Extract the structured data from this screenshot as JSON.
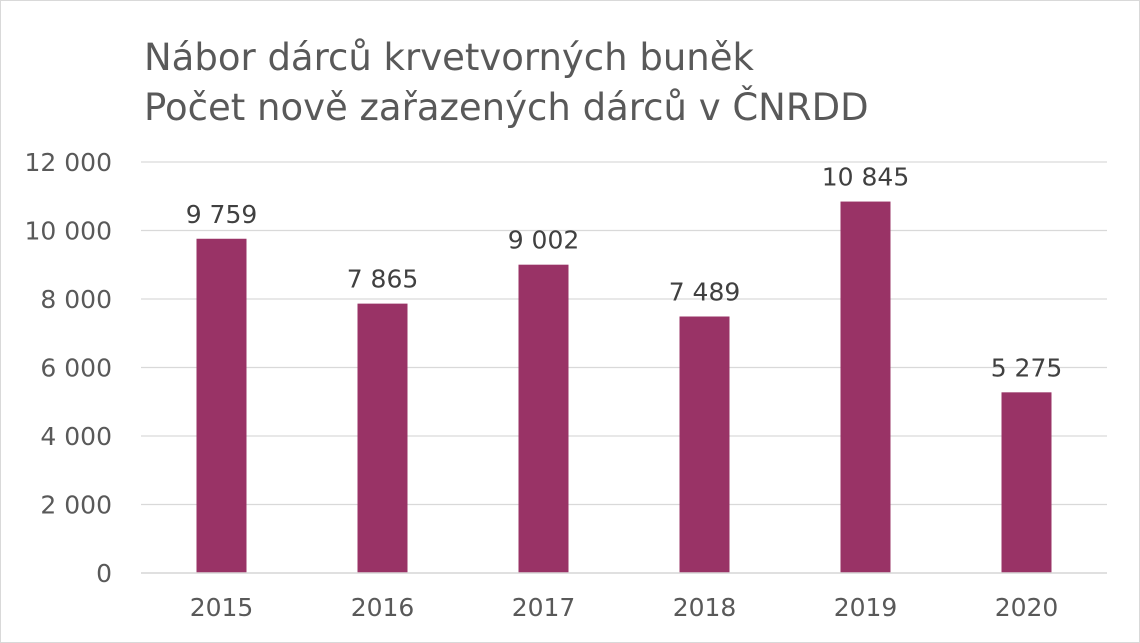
{
  "chart_data": {
    "type": "bar",
    "title": "Nábor dárců krvetvorných buněk",
    "subtitle": "Počet nově zařazených dárců v ČNRDD",
    "xlabel": "",
    "ylabel": "",
    "categories": [
      "2015",
      "2016",
      "2017",
      "2018",
      "2019",
      "2020"
    ],
    "values": [
      9759,
      7865,
      9002,
      7489,
      10845,
      5275
    ],
    "data_labels": [
      "9 759",
      "7 865",
      "9 002",
      "7 489",
      "10 845",
      "5 275"
    ],
    "ylim": [
      0,
      12000
    ],
    "yticks": [
      0,
      2000,
      4000,
      6000,
      8000,
      10000,
      12000
    ],
    "ytick_labels": [
      "0",
      "2 000",
      "4 000",
      "6 000",
      "8 000",
      "10 000",
      "12 000"
    ],
    "grid": true,
    "legend": "none",
    "bar_color": "#993366",
    "grid_color": "#d9d9d9",
    "text_color": "#595959"
  }
}
